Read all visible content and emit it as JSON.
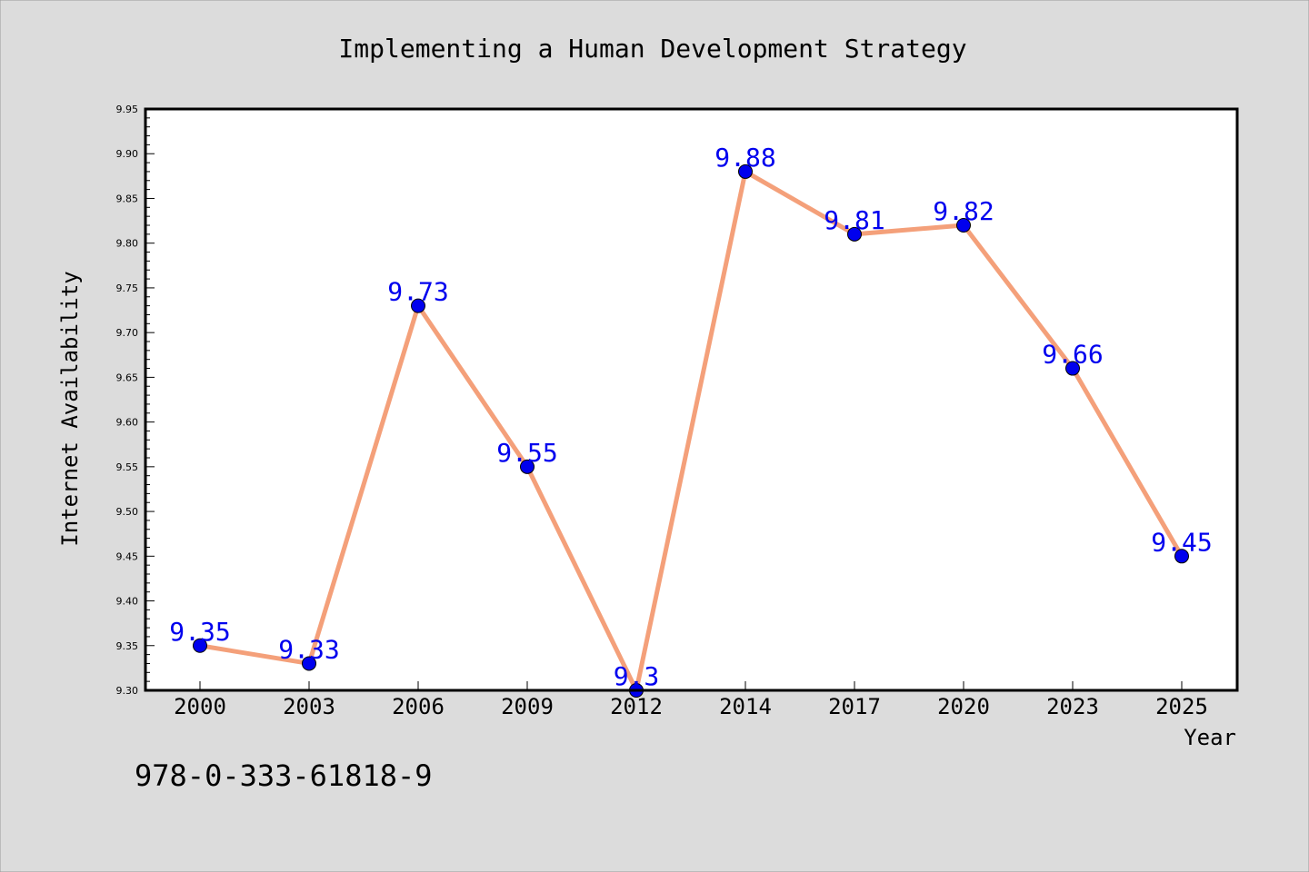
{
  "figure": {
    "background": "#dcdcdc",
    "isbn": "978-0-333-61818-9"
  },
  "chart_data": {
    "type": "line",
    "title": "Implementing a Human Development Strategy",
    "xlabel": "Year",
    "ylabel": "Internet Availability",
    "categories": [
      "2000",
      "2003",
      "2006",
      "2009",
      "2012",
      "2014",
      "2017",
      "2020",
      "2023",
      "2025"
    ],
    "series": [
      {
        "values": [
          9.35,
          9.33,
          9.73,
          9.55,
          9.3,
          9.88,
          9.81,
          9.82,
          9.66,
          9.45
        ],
        "data_labels": [
          "9.35",
          "9.33",
          "9.73",
          "9.55",
          "9.3",
          "9.88",
          "9.81",
          "9.82",
          "9.66",
          "9.45"
        ],
        "line_color": "#f4a07a",
        "marker_color": "#0000ee",
        "label_color": "#0000ee"
      }
    ],
    "ylim": [
      9.3,
      9.95
    ],
    "yticks": [
      "9.30",
      "9.35",
      "9.40",
      "9.45",
      "9.50",
      "9.55",
      "9.60",
      "9.65",
      "9.70",
      "9.75",
      "9.80",
      "9.85",
      "9.90",
      "9.95"
    ],
    "grid": false,
    "legend": "none"
  }
}
